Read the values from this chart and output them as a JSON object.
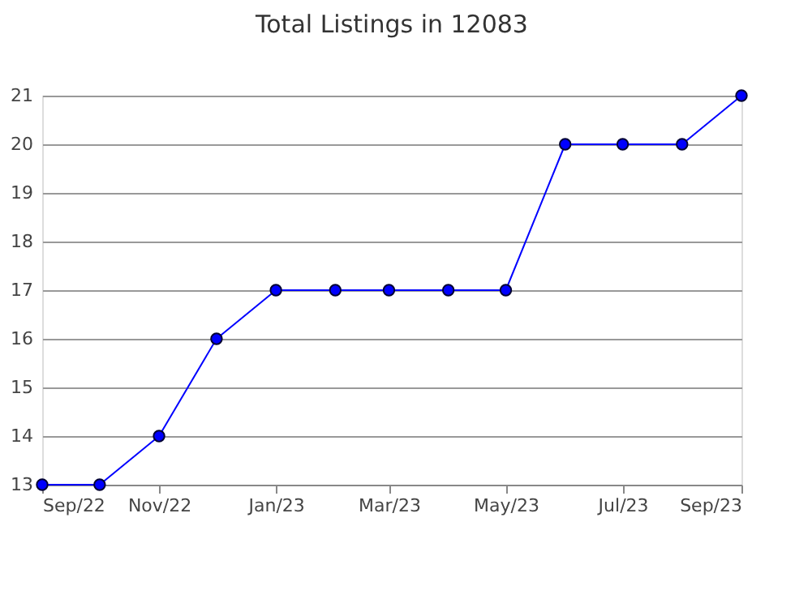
{
  "chart_data": {
    "type": "line",
    "title": "Total Listings in 12083",
    "x": [
      "2022-09",
      "2022-10",
      "2022-11",
      "2022-12",
      "2023-01",
      "2023-02",
      "2023-03",
      "2023-04",
      "2023-05",
      "2023-06",
      "2023-07",
      "2023-08",
      "2023-09"
    ],
    "series": [
      {
        "color": "#0000ff",
        "values": [
          13,
          13,
          14,
          16,
          17,
          17,
          17,
          17,
          17,
          20,
          20,
          20,
          21
        ]
      }
    ],
    "xlim": [
      "2022-09",
      "2023-09"
    ],
    "xticks": [
      {
        "value": "2022-09",
        "label": "Sep/22"
      },
      {
        "value": "2022-11",
        "label": "Nov/22"
      },
      {
        "value": "2023-01",
        "label": "Jan/23"
      },
      {
        "value": "2023-03",
        "label": "Mar/23"
      },
      {
        "value": "2023-05",
        "label": "May/23"
      },
      {
        "value": "2023-07",
        "label": "Jul/23"
      },
      {
        "value": "2023-09",
        "label": "Sep/23"
      }
    ],
    "ylim": [
      13,
      21
    ],
    "yticks": [
      13,
      14,
      15,
      16,
      17,
      18,
      19,
      20,
      21
    ],
    "grid": "y",
    "marker": "circle",
    "line_style": "solid"
  }
}
